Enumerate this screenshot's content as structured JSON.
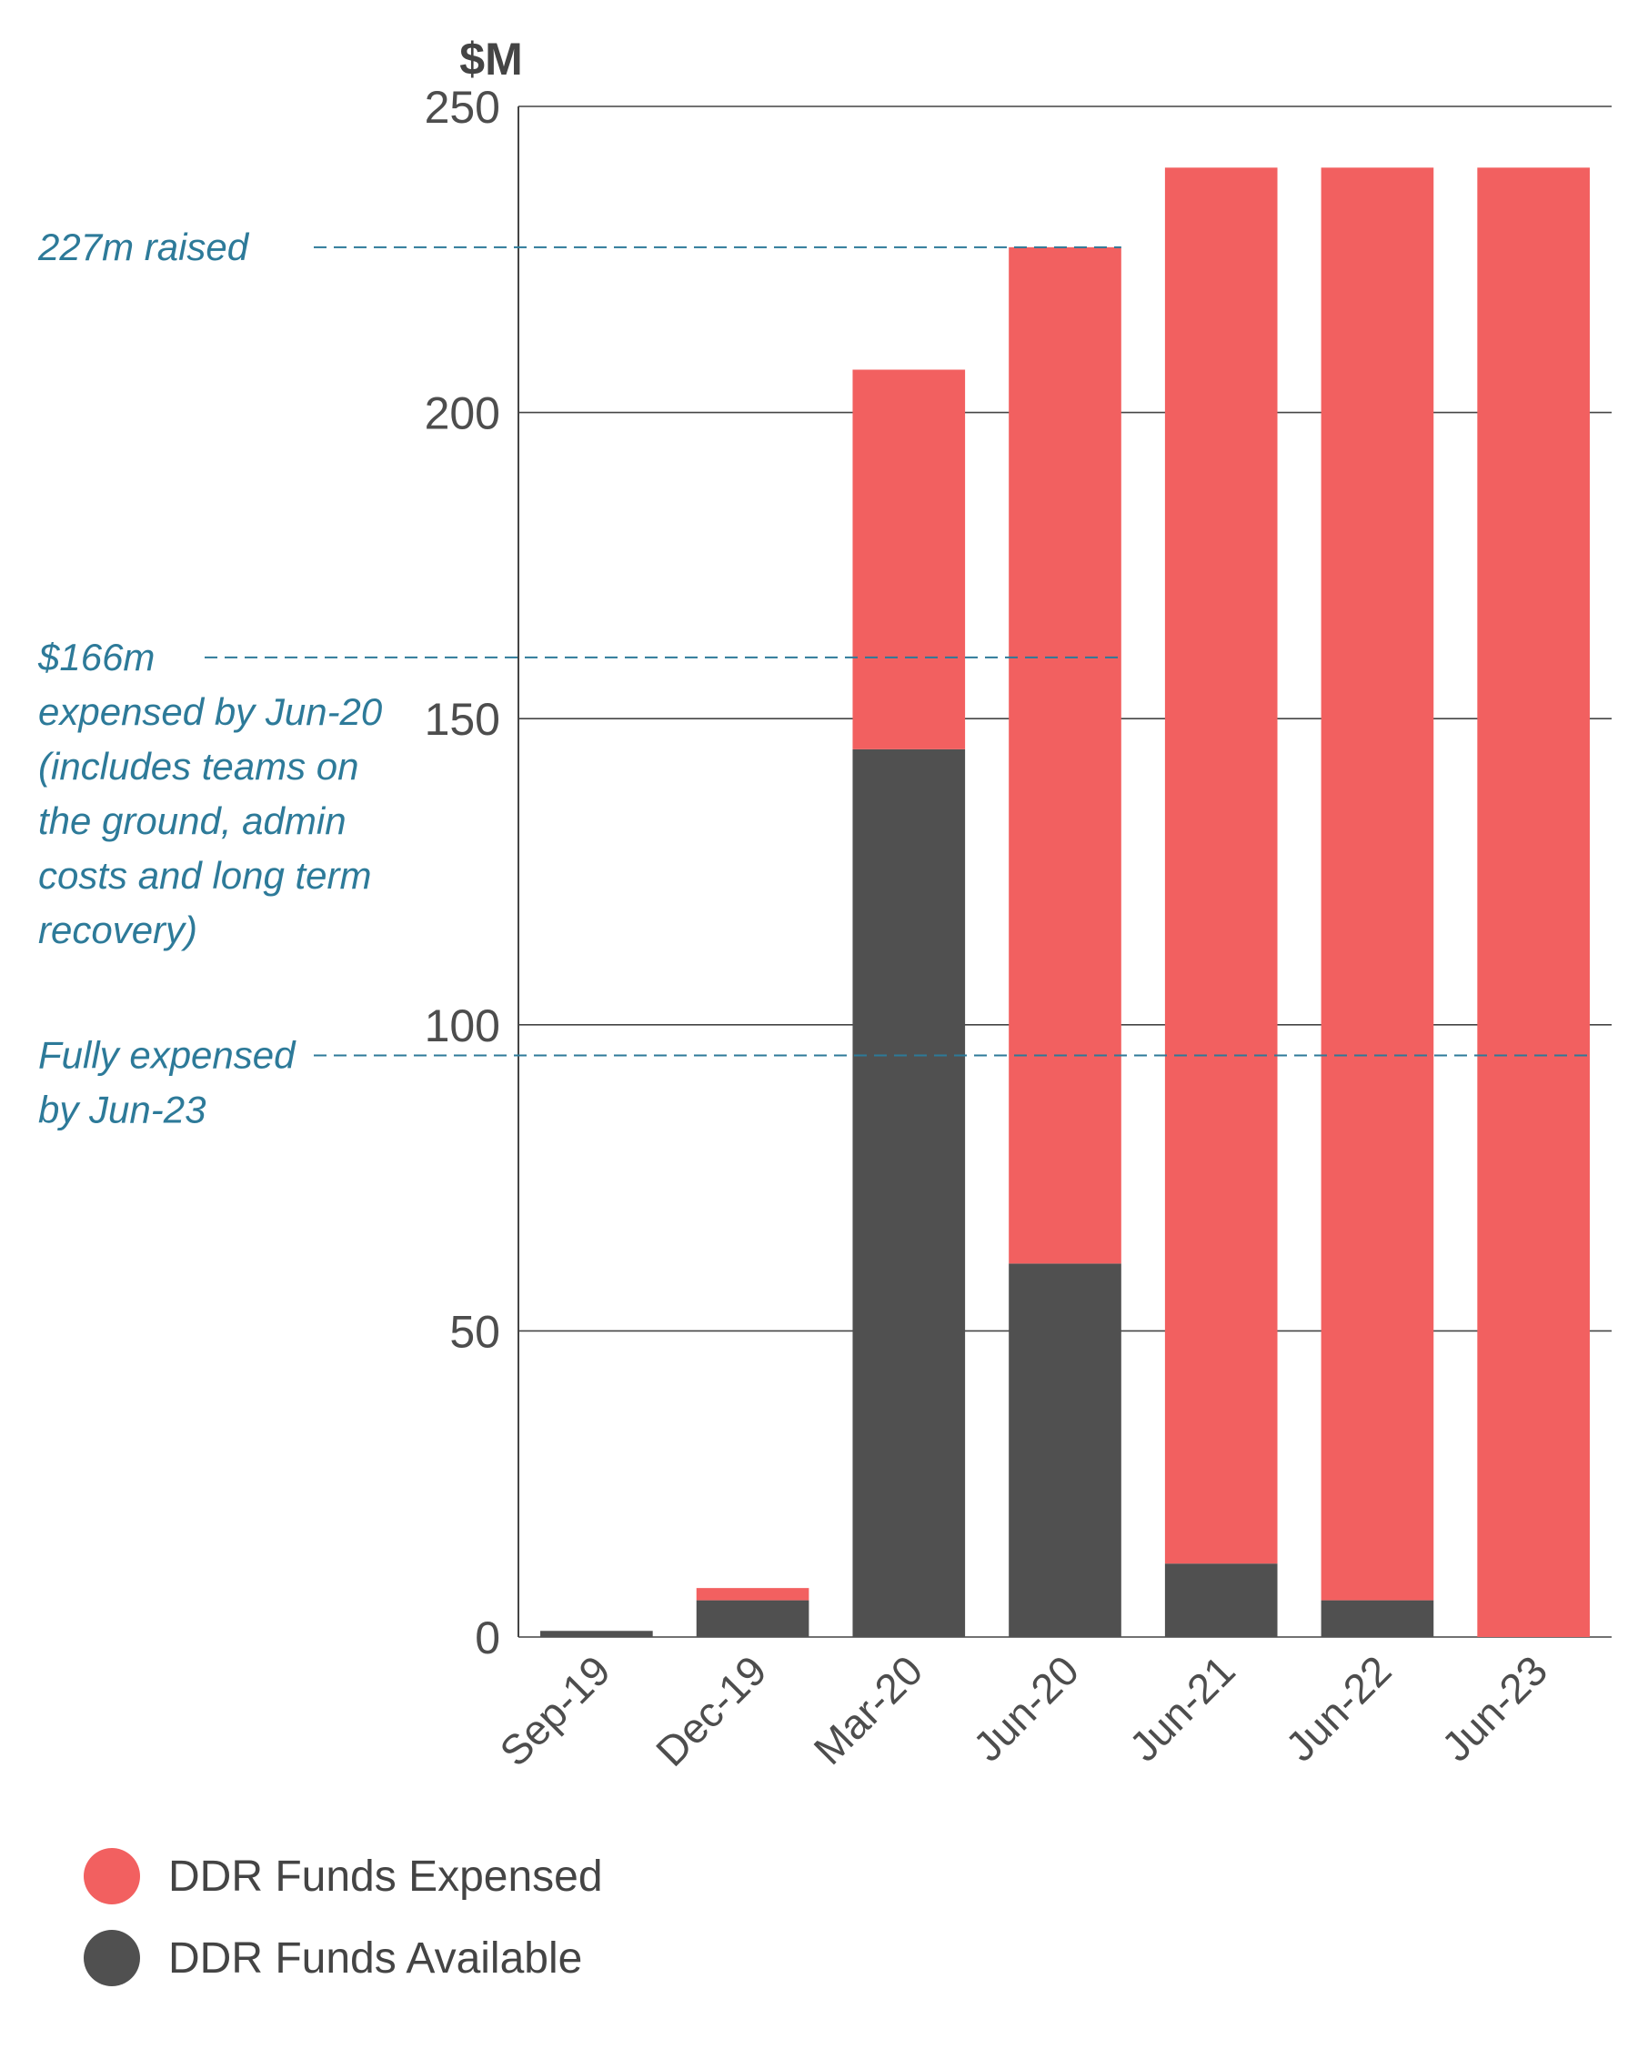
{
  "chart_data": {
    "type": "bar",
    "stacked": true,
    "unit_label": "$M",
    "categories": [
      "Sep-19",
      "Dec-19",
      "Mar-20",
      "Jun-20",
      "Jun-21",
      "Jun-22",
      "Jun-23"
    ],
    "series": [
      {
        "name": "DDR Funds Available",
        "color": "#505050",
        "values": [
          1,
          6,
          145,
          61,
          12,
          6,
          0
        ]
      },
      {
        "name": "DDR Funds Expensed",
        "color": "#f26060",
        "values": [
          0,
          2,
          62,
          166,
          228,
          234,
          240
        ]
      }
    ],
    "ylim": [
      0,
      250
    ],
    "yticks": [
      0,
      50,
      100,
      150,
      200,
      250
    ],
    "grid": true,
    "legend_order": [
      "DDR Funds Expensed",
      "DDR Funds Available"
    ],
    "legend_position": "bottom-left",
    "annotation_color": "#2d7a99",
    "annotations": [
      {
        "name": "raised",
        "lines": [
          "227m raised"
        ],
        "y": 227,
        "to_category": "Jun-20"
      },
      {
        "name": "expensed-jun20",
        "lines": [
          "$166m",
          "expensed by Jun-20",
          "(includes teams on",
          "the ground, admin",
          "costs and long term",
          "recovery)"
        ],
        "y": 160,
        "to_category": "Jun-20"
      },
      {
        "name": "fully-expensed",
        "lines": [
          "Fully expensed",
          "by Jun-23"
        ],
        "y": 95,
        "to_category": "Jun-23"
      }
    ]
  }
}
